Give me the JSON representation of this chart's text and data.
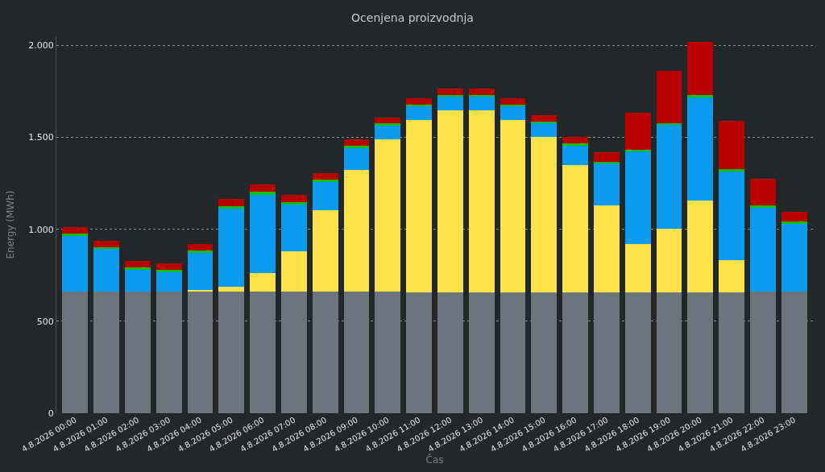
{
  "chart_data": {
    "type": "bar",
    "title": "Ocenjena proizvodnja",
    "xlabel": "Čas",
    "ylabel": "Energy (MWh)",
    "stacked": true,
    "grid": "y",
    "categories": [
      "4.8.2026 00:00",
      "4.8.2026 01:00",
      "4.8.2026 02:00",
      "4.8.2026 03:00",
      "4.8.2026 04:00",
      "4.8.2026 05:00",
      "4.8.2026 06:00",
      "4.8.2026 07:00",
      "4.8.2026 08:00",
      "4.8.2026 09:00",
      "4.8.2026 10:00",
      "4.8.2026 11:00",
      "4.8.2026 12:00",
      "4.8.2026 13:00",
      "4.8.2026 14:00",
      "4.8.2026 15:00",
      "4.8.2026 16:00",
      "4.8.2026 17:00",
      "4.8.2026 18:00",
      "4.8.2026 19:00",
      "4.8.2026 20:00",
      "4.8.2026 21:00",
      "4.8.2026 22:00",
      "4.8.2026 23:00"
    ],
    "ylim": [
      0,
      2050
    ],
    "yticks": [
      0,
      500,
      {
        "value": 1000,
        "label": "1.000"
      },
      {
        "value": 1500,
        "label": "1.500"
      },
      {
        "value": 2000,
        "label": "2.000"
      }
    ],
    "series": [
      {
        "color": "#6a757c",
        "values": [
          660,
          660,
          660,
          660,
          660,
          660,
          660,
          660,
          660,
          660,
          660,
          655,
          655,
          655,
          655,
          655,
          655,
          655,
          655,
          655,
          655,
          655,
          660,
          660
        ]
      },
      {
        "color": "#ffe24a",
        "values": [
          0,
          0,
          0,
          0,
          11,
          29,
          103,
          220,
          442,
          665,
          830,
          941,
          990,
          990,
          941,
          846,
          694,
          475,
          267,
          349,
          500,
          177,
          0,
          0
        ]
      },
      {
        "color": "#0a9bef",
        "values": [
          305,
          233,
          120,
          107,
          199,
          424,
          426,
          254,
          154,
          117,
          75,
          72,
          75,
          75,
          72,
          75,
          107,
          227,
          500,
          562,
          560,
          483,
          459,
          368
        ]
      },
      {
        "color": "#10c010",
        "values": [
          14,
          11,
          14,
          14,
          14,
          14,
          14,
          14,
          14,
          14,
          10,
          11,
          12,
          12,
          11,
          10,
          11,
          10,
          12,
          12,
          14,
          11,
          11,
          13
        ]
      },
      {
        "color": "#b80000",
        "values": [
          35,
          35,
          35,
          34,
          36,
          38,
          39,
          37,
          35,
          34,
          34,
          34,
          35,
          35,
          34,
          34,
          34,
          51,
          200,
          285,
          291,
          263,
          144,
          52
        ]
      }
    ]
  }
}
